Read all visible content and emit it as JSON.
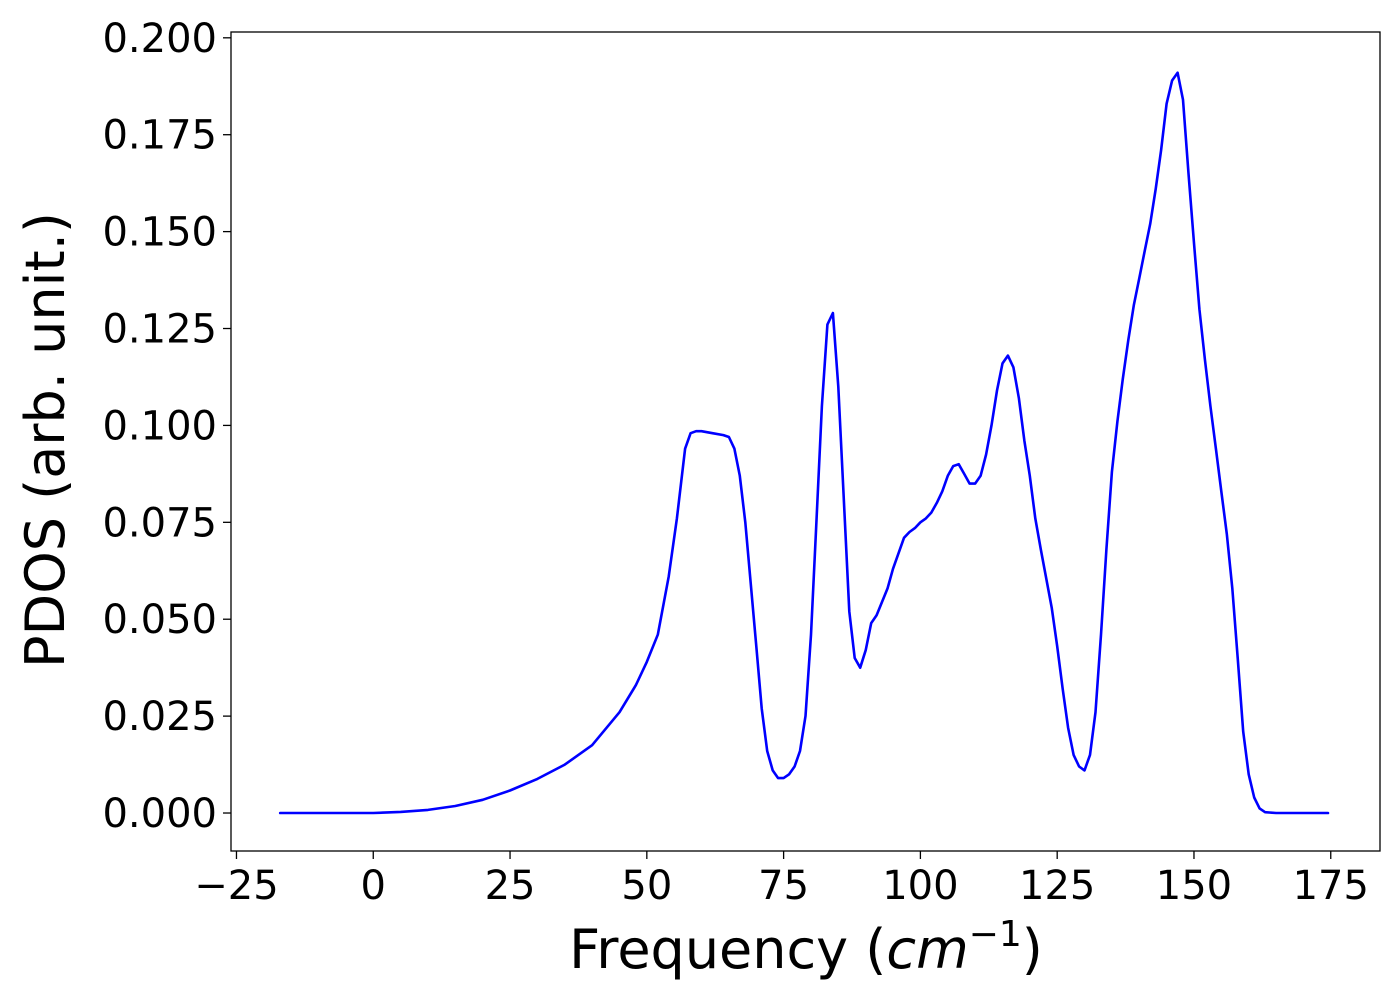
{
  "chart_data": {
    "type": "line",
    "title": "",
    "xlabel": "Frequency",
    "xlabel_unit_base": "cm",
    "xlabel_unit_exp": "−1",
    "ylabel": "PDOS (arb. unit.)",
    "xlim": [
      -26,
      184
    ],
    "ylim": [
      -0.0098,
      0.2015
    ],
    "xticks": [
      -25,
      0,
      25,
      50,
      75,
      100,
      125,
      150,
      175
    ],
    "xtick_labels": [
      "−25",
      "0",
      "25",
      "50",
      "75",
      "100",
      "125",
      "150",
      "175"
    ],
    "yticks": [
      0.0,
      0.025,
      0.05,
      0.075,
      0.1,
      0.125,
      0.15,
      0.175,
      0.2
    ],
    "ytick_labels": [
      "0.000",
      "0.025",
      "0.050",
      "0.075",
      "0.100",
      "0.125",
      "0.150",
      "0.175",
      "0.200"
    ],
    "grid": false,
    "legend": "none",
    "series": [
      {
        "color": "#0000ff",
        "x": [
          -17,
          -10,
          -5,
          0,
          5,
          10,
          15,
          20,
          25,
          30,
          35,
          40,
          45,
          48,
          50,
          52,
          54,
          55.5,
          57,
          58,
          59,
          60,
          62,
          64,
          65,
          66,
          67,
          68,
          69,
          70,
          71,
          72,
          73,
          74,
          75,
          76,
          77,
          78,
          79,
          80,
          81,
          82,
          83,
          84,
          85,
          86,
          87,
          88,
          89,
          90,
          91,
          92,
          94,
          95,
          96,
          97,
          98,
          99,
          100,
          101,
          102,
          103,
          104,
          105,
          106,
          107,
          108,
          109,
          110,
          111,
          112,
          113,
          114,
          115,
          116,
          117,
          118,
          119,
          120,
          121,
          122,
          124,
          125,
          126,
          127,
          128,
          129,
          130,
          131,
          132,
          133,
          134,
          135,
          136,
          137,
          138,
          139,
          140,
          141,
          142,
          143,
          144,
          145,
          146,
          147,
          148,
          149,
          150,
          151,
          152,
          153,
          154,
          155,
          156,
          157,
          158,
          159,
          160,
          161,
          162,
          163,
          165,
          170,
          174.5
        ],
        "y": [
          0.0,
          0.0,
          0.0,
          0.0,
          0.0003,
          0.0008,
          0.0018,
          0.0034,
          0.0058,
          0.0088,
          0.0125,
          0.0175,
          0.026,
          0.033,
          0.039,
          0.046,
          0.061,
          0.076,
          0.094,
          0.098,
          0.0985,
          0.0985,
          0.098,
          0.0975,
          0.097,
          0.094,
          0.087,
          0.075,
          0.059,
          0.043,
          0.027,
          0.016,
          0.011,
          0.009,
          0.009,
          0.01,
          0.012,
          0.016,
          0.025,
          0.046,
          0.075,
          0.105,
          0.126,
          0.129,
          0.11,
          0.081,
          0.052,
          0.04,
          0.0375,
          0.042,
          0.049,
          0.051,
          0.058,
          0.063,
          0.067,
          0.071,
          0.0725,
          0.0735,
          0.075,
          0.076,
          0.0775,
          0.08,
          0.083,
          0.087,
          0.0895,
          0.09,
          0.0875,
          0.085,
          0.085,
          0.087,
          0.0925,
          0.1,
          0.109,
          0.116,
          0.118,
          0.115,
          0.107,
          0.096,
          0.087,
          0.076,
          0.068,
          0.053,
          0.043,
          0.032,
          0.022,
          0.015,
          0.012,
          0.011,
          0.015,
          0.026,
          0.046,
          0.068,
          0.088,
          0.101,
          0.112,
          0.122,
          0.131,
          0.138,
          0.145,
          0.152,
          0.161,
          0.171,
          0.183,
          0.189,
          0.191,
          0.184,
          0.165,
          0.147,
          0.13,
          0.117,
          0.105,
          0.094,
          0.083,
          0.072,
          0.058,
          0.04,
          0.021,
          0.01,
          0.004,
          0.0012,
          0.0002,
          0.0,
          0.0,
          0.0
        ]
      }
    ]
  }
}
